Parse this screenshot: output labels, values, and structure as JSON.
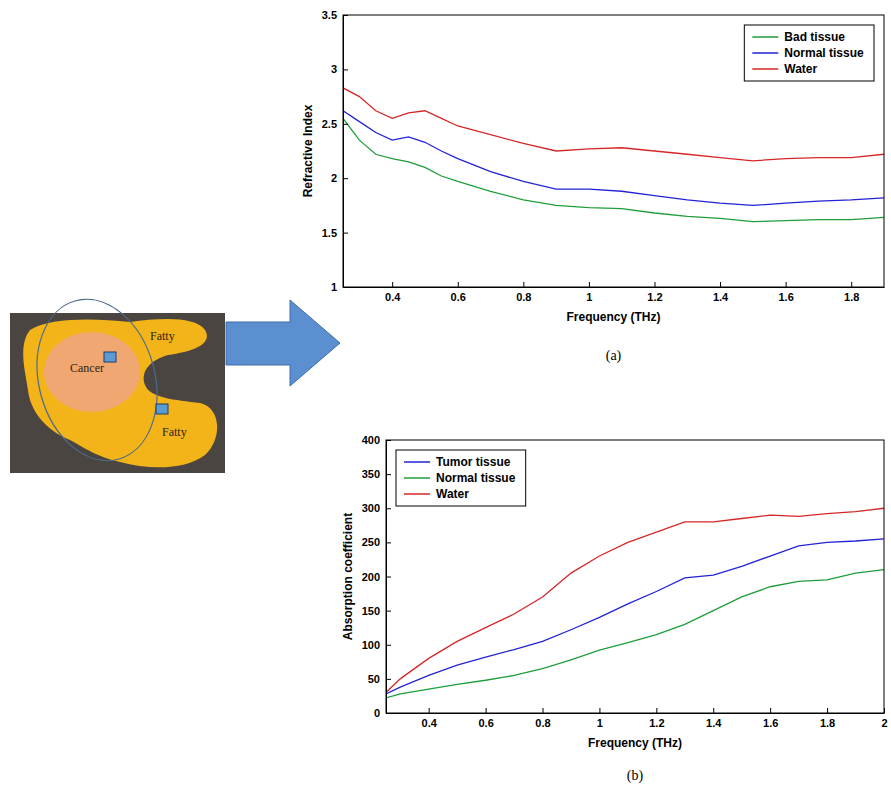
{
  "chart_data": [
    {
      "type": "line",
      "caption": "(a)",
      "x_label": "Frequency (THz)",
      "y_label": "Refractive Index",
      "x": [
        0.25,
        0.3,
        0.35,
        0.4,
        0.45,
        0.5,
        0.55,
        0.6,
        0.7,
        0.8,
        0.9,
        1.0,
        1.1,
        1.2,
        1.3,
        1.4,
        1.5,
        1.6,
        1.7,
        1.8,
        1.9
      ],
      "xlim": [
        0.25,
        1.9
      ],
      "xticks": [
        0.4,
        0.6,
        0.8,
        1,
        1.2,
        1.4,
        1.6,
        1.8
      ],
      "ylim": [
        1,
        3.5
      ],
      "yticks": [
        1,
        1.5,
        2,
        2.5,
        3,
        3.5
      ],
      "legend": "upper right",
      "series": [
        {
          "name": "Bad tissue",
          "color": "#1e9e3a",
          "values": [
            2.55,
            2.35,
            2.22,
            2.18,
            2.15,
            2.1,
            2.02,
            1.97,
            1.88,
            1.8,
            1.75,
            1.73,
            1.72,
            1.68,
            1.65,
            1.63,
            1.6,
            1.61,
            1.62,
            1.62,
            1.64
          ]
        },
        {
          "name": "Normal tissue",
          "color": "#2323d6",
          "values": [
            2.62,
            2.52,
            2.42,
            2.35,
            2.38,
            2.33,
            2.25,
            2.18,
            2.06,
            1.97,
            1.9,
            1.9,
            1.88,
            1.84,
            1.8,
            1.77,
            1.75,
            1.77,
            1.79,
            1.8,
            1.82
          ]
        },
        {
          "name": "Water",
          "color": "#d62728",
          "values": [
            2.83,
            2.75,
            2.62,
            2.55,
            2.6,
            2.62,
            2.55,
            2.48,
            2.4,
            2.32,
            2.25,
            2.27,
            2.28,
            2.25,
            2.22,
            2.19,
            2.16,
            2.18,
            2.19,
            2.19,
            2.22
          ]
        }
      ]
    },
    {
      "type": "line",
      "caption": "(b)",
      "x_label": "Frequency (THz)",
      "y_label": "Absorption coefficient",
      "x": [
        0.25,
        0.3,
        0.4,
        0.5,
        0.6,
        0.7,
        0.8,
        0.9,
        1.0,
        1.1,
        1.2,
        1.3,
        1.4,
        1.5,
        1.6,
        1.7,
        1.8,
        1.9,
        2.0
      ],
      "xlim": [
        0.25,
        2
      ],
      "xticks": [
        0.4,
        0.6,
        0.8,
        1,
        1.2,
        1.4,
        1.6,
        1.8,
        2
      ],
      "ylim": [
        0,
        400
      ],
      "yticks": [
        0,
        50,
        100,
        150,
        200,
        250,
        300,
        350,
        400
      ],
      "legend": "upper left",
      "series": [
        {
          "name": "Tumor tissue",
          "color": "#2323d6",
          "values": [
            28,
            38,
            55,
            70,
            82,
            93,
            105,
            122,
            140,
            160,
            178,
            198,
            202,
            215,
            230,
            245,
            250,
            252,
            255
          ]
        },
        {
          "name": "Normal tissue",
          "color": "#1e9e3a",
          "values": [
            22,
            28,
            35,
            42,
            48,
            55,
            65,
            78,
            92,
            103,
            115,
            130,
            150,
            170,
            185,
            193,
            195,
            205,
            210
          ]
        },
        {
          "name": "Water",
          "color": "#d62728",
          "values": [
            30,
            50,
            80,
            105,
            125,
            145,
            170,
            205,
            230,
            250,
            265,
            280,
            280,
            285,
            290,
            288,
            292,
            295,
            300
          ]
        }
      ]
    }
  ],
  "image": {
    "labels": [
      "Fatty",
      "Cancer",
      "Fatty"
    ]
  }
}
